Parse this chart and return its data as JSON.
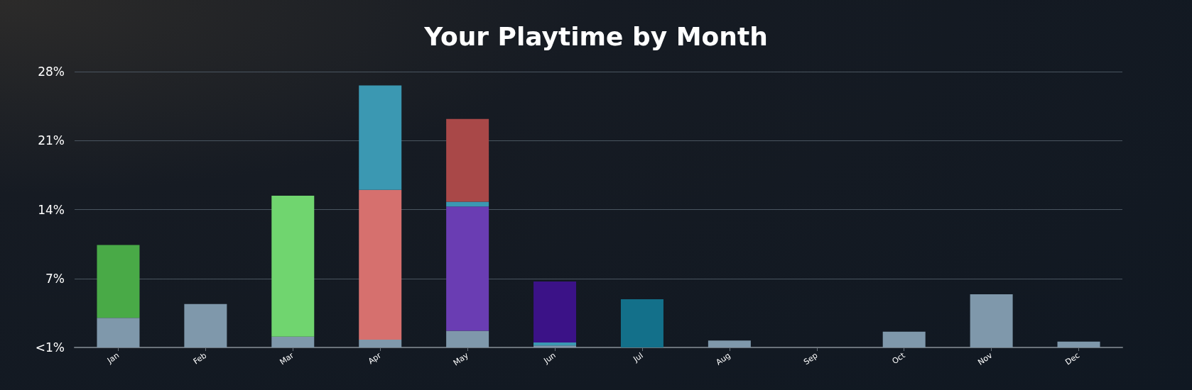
{
  "chart_data": {
    "type": "bar",
    "title": "Your Playtime by Month",
    "categories": [
      "Jan",
      "Feb",
      "Mar",
      "Apr",
      "May",
      "Jun",
      "Jul",
      "Aug",
      "Sep",
      "Oct",
      "Nov",
      "Dec"
    ],
    "stacked": true,
    "grid": "y",
    "ylim": [
      0,
      28
    ],
    "yticks": [
      {
        "value": 0,
        "label": "<1%"
      },
      {
        "value": 7,
        "label": "7%"
      },
      {
        "value": 14,
        "label": "14%"
      },
      {
        "value": 21,
        "label": "21%"
      },
      {
        "value": 28,
        "label": "28%"
      }
    ],
    "series": [
      {
        "color": "#7f98ab",
        "values": [
          3.0,
          4.4,
          1.1,
          0.8,
          1.7,
          0.2,
          null,
          0.7,
          0,
          1.6,
          5.4,
          0.6
        ]
      },
      {
        "color": "#49aa47",
        "values": [
          7.4,
          null,
          null,
          null,
          null,
          null,
          null,
          null,
          null,
          null,
          null,
          null
        ]
      },
      {
        "color": "#70d56f",
        "values": [
          null,
          null,
          14.3,
          null,
          null,
          null,
          null,
          null,
          null,
          null,
          null,
          null
        ]
      },
      {
        "color": "#d6706e",
        "values": [
          null,
          null,
          null,
          15.2,
          null,
          null,
          null,
          null,
          null,
          null,
          null,
          null
        ]
      },
      {
        "color": "#6a3db3",
        "values": [
          null,
          null,
          null,
          null,
          12.6,
          null,
          null,
          null,
          null,
          null,
          null,
          null
        ]
      },
      {
        "color": "#3b98b2",
        "values": [
          null,
          null,
          null,
          10.6,
          0.5,
          0.3,
          null,
          null,
          null,
          null,
          null,
          null
        ]
      },
      {
        "color": "#a94848",
        "values": [
          null,
          null,
          null,
          null,
          8.4,
          null,
          null,
          null,
          null,
          null,
          null,
          null
        ]
      },
      {
        "color": "#3b1287",
        "values": [
          null,
          null,
          null,
          null,
          null,
          6.2,
          null,
          null,
          null,
          null,
          null,
          null
        ]
      },
      {
        "color": "#13708a",
        "values": [
          null,
          null,
          null,
          null,
          null,
          null,
          4.9,
          null,
          null,
          null,
          null,
          null
        ]
      }
    ]
  }
}
